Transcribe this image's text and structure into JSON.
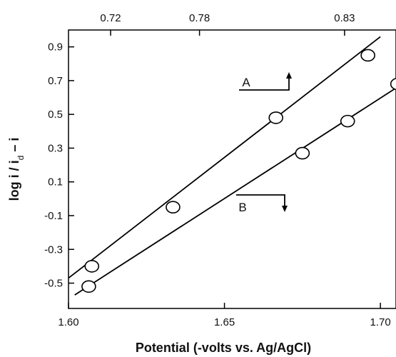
{
  "chart_data": {
    "type": "scatter",
    "xlabel": "Potential (-volts vs. Ag/AgCl)",
    "ylabel_main": "log i / i",
    "ylabel_sub": "d",
    "ylabel_tail": " – i",
    "xlim": [
      1.6,
      1.705
    ],
    "ylim": [
      -0.65,
      1.0
    ],
    "grid": false,
    "x_ticks": [
      {
        "value": 1.6,
        "label": "1.60"
      },
      {
        "value": 1.65,
        "label": "1.65"
      },
      {
        "value": 1.7,
        "label": "1.70"
      }
    ],
    "y_ticks": [
      {
        "value": 0.9,
        "label": "0.9"
      },
      {
        "value": 0.7,
        "label": "0.7"
      },
      {
        "value": 0.5,
        "label": "0.5"
      },
      {
        "value": 0.3,
        "label": "0.3"
      },
      {
        "value": 0.1,
        "label": "0.1"
      },
      {
        "value": -0.1,
        "label": "-0.1"
      },
      {
        "value": -0.3,
        "label": "-0.3"
      },
      {
        "value": -0.5,
        "label": "-0.5"
      }
    ],
    "top_ticks": [
      {
        "value": 1.6135,
        "label": "0.72"
      },
      {
        "value": 1.642,
        "label": "0.78"
      },
      {
        "value": 1.6885,
        "label": "0.83"
      }
    ],
    "series": [
      {
        "name": "A",
        "points": [
          {
            "x": 1.6075,
            "y": -0.4
          },
          {
            "x": 1.6335,
            "y": -0.05
          },
          {
            "x": 1.6665,
            "y": 0.48
          },
          {
            "x": 1.696,
            "y": 0.85
          }
        ],
        "fit": [
          {
            "x": 1.6,
            "y": -0.47
          },
          {
            "x": 1.7,
            "y": 0.96
          }
        ]
      },
      {
        "name": "B",
        "points": [
          {
            "x": 1.6065,
            "y": -0.52
          },
          {
            "x": 1.675,
            "y": 0.27
          },
          {
            "x": 1.6895,
            "y": 0.46
          },
          {
            "x": 1.7055,
            "y": 0.68
          }
        ],
        "fit": [
          {
            "x": 1.602,
            "y": -0.57
          },
          {
            "x": 1.707,
            "y": 0.68
          }
        ]
      }
    ]
  }
}
